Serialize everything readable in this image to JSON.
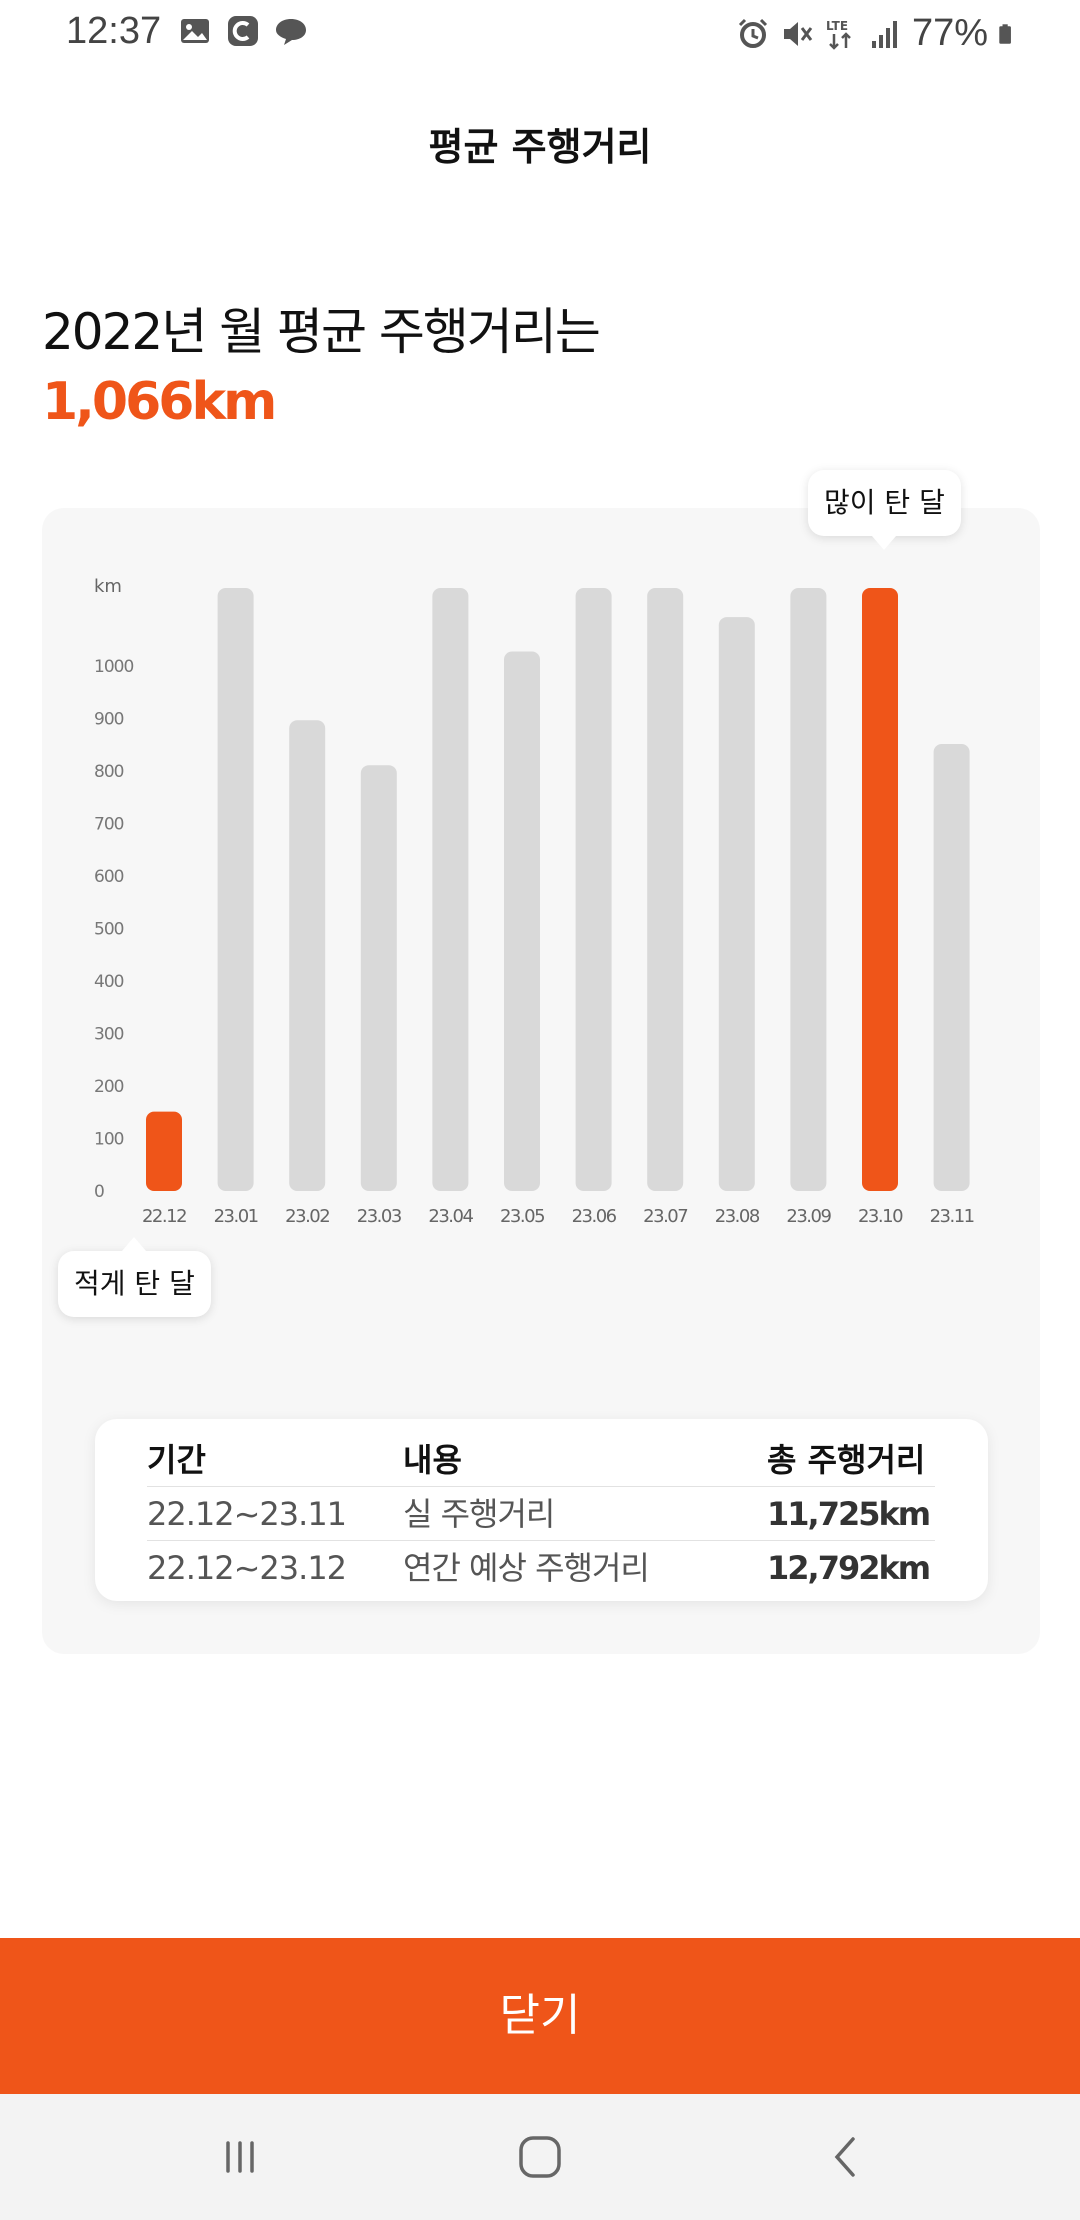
{
  "status_bar": {
    "time": "12:37",
    "left_icons": [
      "gallery-icon",
      "c-app-icon",
      "chat-bubble-icon"
    ],
    "right_icons": [
      "alarm-icon",
      "mute-icon",
      "lte-icon",
      "signal-icon",
      "battery-icon"
    ],
    "battery": "77%",
    "network": "LTE"
  },
  "header": {
    "title": "평균 주행거리"
  },
  "headline": {
    "text": "2022년 월 평균 주행거리는",
    "value": "1,066km"
  },
  "colors": {
    "accent": "#ef5519",
    "bar_default": "#d9d9d9",
    "card_bg": "#f7f7f7"
  },
  "chart_data": {
    "type": "bar",
    "unit_label": "km",
    "y_ticks": [
      "1000",
      "900",
      "800",
      "700",
      "600",
      "500",
      "400",
      "300",
      "200",
      "100",
      "0"
    ],
    "categories": [
      "22.12",
      "23.01",
      "23.02",
      "23.03",
      "23.04",
      "23.05",
      "23.06",
      "23.07",
      "23.08",
      "23.09",
      "23.10",
      "23.11"
    ],
    "values": [
      150,
      1140,
      890,
      805,
      1140,
      1020,
      1140,
      1140,
      1085,
      1140,
      1140,
      845
    ],
    "highlighted": [
      "22.12",
      "23.10"
    ],
    "ylim": [
      0,
      1140
    ],
    "callouts": {
      "max": "많이 탄 달",
      "min": "적게 탄 달"
    }
  },
  "summary": {
    "headers": [
      "기간",
      "내용",
      "총 주행거리"
    ],
    "rows": [
      [
        "22.12~23.11",
        "실 주행거리",
        "11,725km"
      ],
      [
        "22.12~23.12",
        "연간 예상 주행거리",
        "12,792km"
      ]
    ]
  },
  "close_button": {
    "label": "닫기"
  },
  "nav_bar": {
    "icons": [
      "recent-apps-icon",
      "home-icon",
      "back-icon"
    ]
  }
}
